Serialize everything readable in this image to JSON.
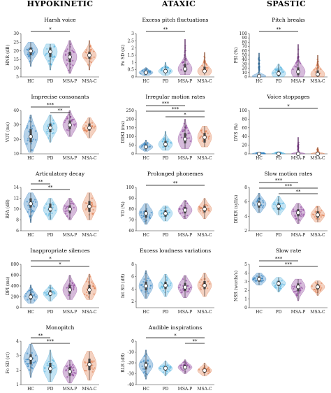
{
  "columns": [
    "HYPOKINETIC",
    "ATAXIC",
    "SPASTIC"
  ],
  "groups": [
    "HC",
    "PD",
    "MSA-P",
    "MSA-C"
  ],
  "colors": {
    "HC": "#2e7fc0",
    "PD": "#52b3e0",
    "MSA-P": "#8a3b97",
    "MSA-C": "#e07a4a"
  },
  "chart_data": [
    {
      "type": "violin",
      "col": 0,
      "row": 0,
      "title": "Harsh voice",
      "ylabel": "HNR (dB)",
      "ylim": [
        5,
        30
      ],
      "yticks": [
        5,
        10,
        15,
        20,
        25,
        30
      ],
      "medians": [
        20,
        19.5,
        16.5,
        17.5
      ],
      "q1": [
        17.5,
        16.5,
        13.5,
        15.5
      ],
      "q3": [
        22,
        22,
        19.5,
        19.5
      ],
      "min": [
        11,
        9,
        7,
        9
      ],
      "max": [
        25,
        24,
        26,
        26
      ],
      "sig": [
        {
          "a": 0,
          "b": 2,
          "label": "*"
        }
      ]
    },
    {
      "type": "violin",
      "col": 0,
      "row": 1,
      "title": "Imprecise consonants",
      "ylabel": "VOT (ms)",
      "ylim": [
        10,
        40
      ],
      "yticks": [
        10,
        20,
        30,
        40
      ],
      "medians": [
        22,
        28,
        30,
        28
      ],
      "q1": [
        18,
        25,
        27,
        26
      ],
      "q3": [
        27,
        31,
        33,
        31
      ],
      "min": [
        11,
        18,
        22,
        21
      ],
      "max": [
        37,
        37,
        40,
        35
      ],
      "sig": [
        {
          "a": 0,
          "b": 2,
          "label": "***"
        },
        {
          "a": 1,
          "b": 2,
          "label": "**"
        }
      ]
    },
    {
      "type": "violin",
      "col": 0,
      "row": 2,
      "title": "Articulatory decay",
      "ylabel": "RFA (dB)",
      "ylim": [
        6,
        14
      ],
      "yticks": [
        6,
        8,
        10,
        12,
        14
      ],
      "medians": [
        11,
        10,
        10,
        10.5
      ],
      "q1": [
        10.3,
        9.5,
        9.3,
        9.5
      ],
      "q3": [
        12,
        11,
        10.7,
        11.5
      ],
      "min": [
        7.5,
        8,
        8,
        8
      ],
      "max": [
        13,
        12,
        12,
        13
      ],
      "sig": [
        {
          "a": 0,
          "b": 1,
          "label": "**"
        },
        {
          "a": 0,
          "b": 2,
          "label": "**"
        }
      ]
    },
    {
      "type": "violin",
      "col": 0,
      "row": 3,
      "title": "Inappropriate silences",
      "ylabel": "DPI (ms)",
      "ylim": [
        0,
        800
      ],
      "yticks": [
        0,
        200,
        400,
        600,
        800
      ],
      "medians": [
        200,
        260,
        330,
        330
      ],
      "q1": [
        150,
        220,
        260,
        250
      ],
      "q3": [
        260,
        320,
        420,
        420
      ],
      "min": [
        80,
        120,
        150,
        150
      ],
      "max": [
        420,
        420,
        600,
        620
      ],
      "sig": [
        {
          "a": 0,
          "b": 2,
          "label": "*"
        },
        {
          "a": 0,
          "b": 3,
          "label": "*"
        }
      ]
    },
    {
      "type": "violin",
      "col": 0,
      "row": 4,
      "title": "Monopitch",
      "ylabel": "Fo SD (st)",
      "ylim": [
        1,
        4
      ],
      "yticks": [
        1,
        2,
        3,
        4
      ],
      "medians": [
        2.8,
        2.1,
        1.9,
        2.4
      ],
      "q1": [
        2.4,
        1.8,
        1.6,
        2
      ],
      "q3": [
        3.1,
        2.5,
        2.2,
        2.8
      ],
      "min": [
        1.5,
        1.2,
        1.1,
        1.3
      ],
      "max": [
        3.8,
        3.4,
        2.7,
        3.3
      ],
      "sig": [
        {
          "a": 0,
          "b": 1,
          "label": "**"
        },
        {
          "a": 0,
          "b": 2,
          "label": "***"
        }
      ]
    },
    {
      "type": "violin",
      "col": 1,
      "row": 0,
      "title": "Excess pitch fluctuations",
      "ylabel": "Fo SD (st)",
      "ylim": [
        0,
        3
      ],
      "yticks": [
        0,
        0.5,
        1,
        1.5,
        2,
        2.5,
        3
      ],
      "medians": [
        0.3,
        0.4,
        0.55,
        0.4
      ],
      "q1": [
        0.2,
        0.28,
        0.35,
        0.28
      ],
      "q3": [
        0.4,
        0.55,
        0.9,
        0.7
      ],
      "min": [
        0.1,
        0.1,
        0.15,
        0.12
      ],
      "max": [
        0.65,
        1,
        2.6,
        1.7
      ],
      "sig": [
        {
          "a": 0,
          "b": 2,
          "label": "**"
        }
      ]
    },
    {
      "type": "violin",
      "col": 1,
      "row": 1,
      "title": "Irregular motion rates",
      "ylabel": "DDKI (ms)",
      "ylim": [
        0,
        250
      ],
      "yticks": [
        0,
        50,
        100,
        150,
        200,
        250
      ],
      "medians": [
        40,
        55,
        85,
        95
      ],
      "q1": [
        30,
        40,
        60,
        65
      ],
      "q3": [
        50,
        75,
        120,
        120
      ],
      "min": [
        15,
        20,
        30,
        40
      ],
      "max": [
        80,
        130,
        200,
        160
      ],
      "sig": [
        {
          "a": 0,
          "b": 2,
          "label": "***"
        },
        {
          "a": 0,
          "b": 3,
          "label": "***"
        },
        {
          "a": 1,
          "b": 3,
          "label": "*"
        }
      ]
    },
    {
      "type": "violin",
      "col": 1,
      "row": 2,
      "title": "Prolonged phonemes",
      "ylabel": "VD (%)",
      "ylim": [
        60,
        100
      ],
      "yticks": [
        60,
        70,
        80,
        90,
        100
      ],
      "medians": [
        76,
        76,
        79,
        80
      ],
      "q1": [
        72,
        73,
        76,
        77
      ],
      "q3": [
        79,
        79,
        82,
        83
      ],
      "min": [
        66,
        69,
        71,
        71
      ],
      "max": [
        85,
        83,
        88,
        90
      ],
      "sig": [
        {
          "a": 0,
          "b": 3,
          "label": "**"
        }
      ]
    },
    {
      "type": "violin",
      "col": 1,
      "row": 3,
      "title": "Excess loudness variations",
      "ylabel": "Int SD (dB)",
      "ylim": [
        1,
        8
      ],
      "yticks": [
        2,
        4,
        6,
        8
      ],
      "medians": [
        4.5,
        4.6,
        4.3,
        4.6
      ],
      "q1": [
        3.8,
        4,
        3.7,
        4
      ],
      "q3": [
        5.2,
        5.2,
        5,
        5.3
      ],
      "min": [
        2.5,
        2.8,
        2.6,
        2.8
      ],
      "max": [
        7,
        6.4,
        6.2,
        6.6
      ],
      "sig": []
    },
    {
      "type": "violin",
      "col": 1,
      "row": 4,
      "title": "Audible inspirations",
      "ylabel": "RLR (dB)",
      "ylim": [
        -40,
        0
      ],
      "yticks": [
        -40,
        -30,
        -20,
        -10,
        0
      ],
      "medians": [
        -22,
        -25,
        -24,
        -27
      ],
      "q1": [
        -26,
        -27,
        -26,
        -29
      ],
      "q3": [
        -19,
        -23,
        -22,
        -25
      ],
      "min": [
        -35,
        -32,
        -30,
        -32
      ],
      "max": [
        -8,
        -18,
        -17,
        -20
      ],
      "sig": [
        {
          "a": 0,
          "b": 3,
          "label": "*"
        },
        {
          "a": 2,
          "b": 3,
          "label": "**"
        }
      ]
    },
    {
      "type": "violin",
      "col": 2,
      "row": 0,
      "title": "Pitch breaks",
      "ylabel": "PSI (%)",
      "ylim": [
        0,
        100
      ],
      "yticks": [
        0,
        10,
        20,
        30,
        40,
        50,
        60,
        70,
        80,
        90,
        100
      ],
      "medians": [
        2,
        8,
        12,
        6
      ],
      "q1": [
        0,
        2,
        4,
        1
      ],
      "q3": [
        5,
        15,
        22,
        15
      ],
      "min": [
        0,
        0,
        0,
        0
      ],
      "max": [
        55,
        30,
        75,
        50
      ],
      "sig": [
        {
          "a": 0,
          "b": 2,
          "label": "**"
        }
      ]
    },
    {
      "type": "violin",
      "col": 2,
      "row": 1,
      "title": "Voice stoppages",
      "ylabel": "DVS (%)",
      "ylim": [
        0,
        100
      ],
      "yticks": [
        0,
        20,
        40,
        60,
        80,
        100
      ],
      "medians": [
        0,
        0,
        0,
        0
      ],
      "q1": [
        0,
        0,
        0,
        0
      ],
      "q3": [
        0,
        0,
        0,
        0
      ],
      "min": [
        0,
        0,
        0,
        0
      ],
      "max": [
        3,
        5,
        38,
        15
      ],
      "sig": [
        {
          "a": 0,
          "b": 3,
          "label": "*"
        }
      ]
    },
    {
      "type": "violin",
      "col": 2,
      "row": 2,
      "title": "Slow motion rates",
      "ylabel": "DDKR (syll/s)",
      "ylim": [
        2,
        8
      ],
      "yticks": [
        2,
        4,
        6,
        8
      ],
      "medians": [
        5.7,
        5.4,
        4.5,
        4.2
      ],
      "q1": [
        5.2,
        4.9,
        4,
        3.8
      ],
      "q3": [
        6.1,
        5.8,
        5,
        4.7
      ],
      "min": [
        4.5,
        4.2,
        3,
        3.2
      ],
      "max": [
        7.2,
        6.8,
        5.8,
        5.4
      ],
      "sig": [
        {
          "a": 0,
          "b": 2,
          "label": "***"
        },
        {
          "a": 0,
          "b": 3,
          "label": "***"
        },
        {
          "a": 1,
          "b": 3,
          "label": "**"
        }
      ]
    },
    {
      "type": "violin",
      "col": 2,
      "row": 3,
      "title": "Slow rate",
      "ylabel": "NSR (words/s)",
      "ylim": [
        0,
        5
      ],
      "yticks": [
        0,
        1,
        2,
        3,
        4,
        5
      ],
      "medians": [
        3.3,
        2.8,
        2.4,
        2.4
      ],
      "q1": [
        3,
        2.5,
        1.9,
        2.1
      ],
      "q3": [
        3.6,
        3.1,
        2.8,
        2.7
      ],
      "min": [
        2.6,
        1.8,
        0.8,
        1.4
      ],
      "max": [
        4,
        3.5,
        3.3,
        3.1
      ],
      "sig": [
        {
          "a": 0,
          "b": 2,
          "label": "***"
        },
        {
          "a": 0,
          "b": 3,
          "label": "***"
        }
      ]
    }
  ]
}
